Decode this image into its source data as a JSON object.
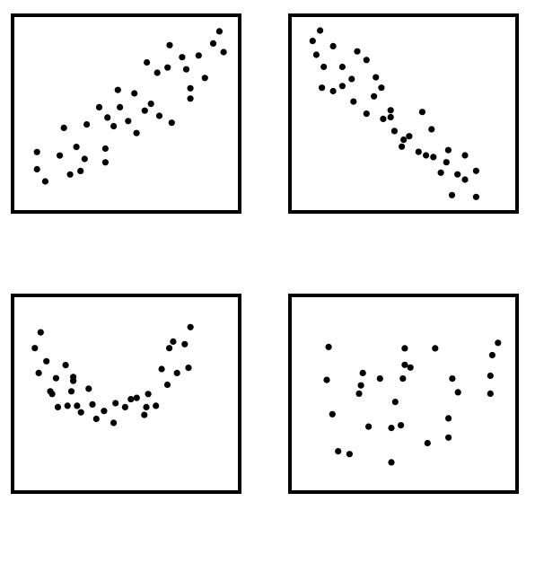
{
  "colors": {
    "frame": "#000000",
    "point": "#000000",
    "background": "#ffffff"
  },
  "chart_data": [
    {
      "type": "scatter",
      "panel": "top-left",
      "title": "",
      "xlabel": "",
      "ylabel": "",
      "xlim": [
        0,
        100
      ],
      "ylim": [
        0,
        100
      ],
      "grid": false,
      "ticks": false,
      "series": [
        {
          "points": [
            [
              7,
              29
            ],
            [
              11,
              12
            ],
            [
              7,
              19
            ],
            [
              18,
              27
            ],
            [
              23,
              16
            ],
            [
              20,
              43
            ],
            [
              28,
              18
            ],
            [
              26,
              32
            ],
            [
              31,
              45
            ],
            [
              30,
              25
            ],
            [
              40,
              23
            ],
            [
              41,
              49
            ],
            [
              40,
              31
            ],
            [
              37,
              55
            ],
            [
              44,
              44
            ],
            [
              51,
              47
            ],
            [
              47,
              55
            ],
            [
              46,
              65
            ],
            [
              55,
              40
            ],
            [
              54,
              63
            ],
            [
              59,
              53
            ],
            [
              62,
              57
            ],
            [
              60,
              81
            ],
            [
              65,
              75
            ],
            [
              66,
              50
            ],
            [
              70,
              78
            ],
            [
              71,
              91
            ],
            [
              72,
              46
            ],
            [
              77,
              84
            ],
            [
              79,
              77
            ],
            [
              81,
              66
            ],
            [
              81,
              60
            ],
            [
              85,
              85
            ],
            [
              88,
              72
            ],
            [
              92,
              92
            ],
            [
              97,
              87
            ],
            [
              95,
              99
            ]
          ]
        }
      ]
    },
    {
      "type": "scatter",
      "panel": "top-right",
      "title": "",
      "xlabel": "",
      "ylabel": "",
      "xlim": [
        0,
        100
      ],
      "ylim": [
        0,
        100
      ],
      "grid": false,
      "ticks": false,
      "series": [
        {
          "points": [
            [
              4,
              94
            ],
            [
              8,
              100
            ],
            [
              6,
              86
            ],
            [
              10,
              79
            ],
            [
              15,
              91
            ],
            [
              20,
              79
            ],
            [
              20,
              68
            ],
            [
              25,
              72
            ],
            [
              15,
              65
            ],
            [
              9,
              67
            ],
            [
              28,
              88
            ],
            [
              33,
              83
            ],
            [
              26,
              59
            ],
            [
              38,
              73
            ],
            [
              37,
              62
            ],
            [
              41,
              67
            ],
            [
              33,
              52
            ],
            [
              42,
              49
            ],
            [
              46,
              50
            ],
            [
              46,
              54
            ],
            [
              48,
              42
            ],
            [
              53,
              37
            ],
            [
              52,
              33
            ],
            [
              56,
              39
            ],
            [
              63,
              53
            ],
            [
              61,
              30
            ],
            [
              65,
              28
            ],
            [
              68,
              43
            ],
            [
              69,
              27
            ],
            [
              73,
              18
            ],
            [
              77,
              31
            ],
            [
              76,
              24
            ],
            [
              79,
              5
            ],
            [
              82,
              17
            ],
            [
              86,
              28
            ],
            [
              86,
              14
            ],
            [
              92,
              19
            ],
            [
              92,
              4
            ]
          ]
        }
      ]
    },
    {
      "type": "scatter",
      "panel": "bottom-left",
      "title": "",
      "xlabel": "",
      "ylabel": "",
      "xlim": [
        0,
        100
      ],
      "ylim": [
        0,
        100
      ],
      "grid": false,
      "ticks": false,
      "series": [
        {
          "points": [
            [
              6,
              79
            ],
            [
              9,
              91
            ],
            [
              8,
              60
            ],
            [
              12,
              69
            ],
            [
              15,
              44
            ],
            [
              17,
              56
            ],
            [
              14,
              46
            ],
            [
              18,
              34
            ],
            [
              22,
              66
            ],
            [
              23,
              35
            ],
            [
              26,
              54
            ],
            [
              26,
              57
            ],
            [
              25,
              46
            ],
            [
              28,
              35
            ],
            [
              30,
              30
            ],
            [
              34,
              48
            ],
            [
              36,
              36
            ],
            [
              38,
              25
            ],
            [
              42,
              31
            ],
            [
              47,
              22
            ],
            [
              48,
              37
            ],
            [
              53,
              34
            ],
            [
              56,
              40
            ],
            [
              59,
              41
            ],
            [
              63,
              28
            ],
            [
              64,
              34
            ],
            [
              65,
              44
            ],
            [
              69,
              35
            ],
            [
              72,
              63
            ],
            [
              76,
              79
            ],
            [
              78,
              84
            ],
            [
              75,
              51
            ],
            [
              80,
              60
            ],
            [
              84,
              82
            ],
            [
              86,
              64
            ],
            [
              87,
              95
            ]
          ]
        }
      ]
    },
    {
      "type": "scatter",
      "panel": "bottom-right",
      "title": "",
      "xlabel": "",
      "ylabel": "",
      "xlim": [
        0,
        100
      ],
      "ylim": [
        0,
        100
      ],
      "grid": false,
      "ticks": false,
      "series": [
        {
          "points": [
            [
              9,
              88
            ],
            [
              8,
              64
            ],
            [
              11,
              39
            ],
            [
              14,
              12
            ],
            [
              27,
              69
            ],
            [
              25,
              54
            ],
            [
              26,
              60
            ],
            [
              30,
              30
            ],
            [
              20,
              10
            ],
            [
              44,
              48
            ],
            [
              49,
              87
            ],
            [
              49,
              75
            ],
            [
              52,
              73
            ],
            [
              42,
              29
            ],
            [
              47,
              31
            ],
            [
              42,
              4
            ],
            [
              65,
              87
            ],
            [
              74,
              65
            ],
            [
              77,
              55
            ],
            [
              72,
              36
            ],
            [
              72,
              22
            ],
            [
              94,
              54
            ],
            [
              94,
              67
            ],
            [
              95,
              82
            ],
            [
              98,
              91
            ],
            [
              61,
              18
            ],
            [
              48,
              65
            ],
            [
              36,
              65
            ]
          ]
        }
      ]
    }
  ]
}
